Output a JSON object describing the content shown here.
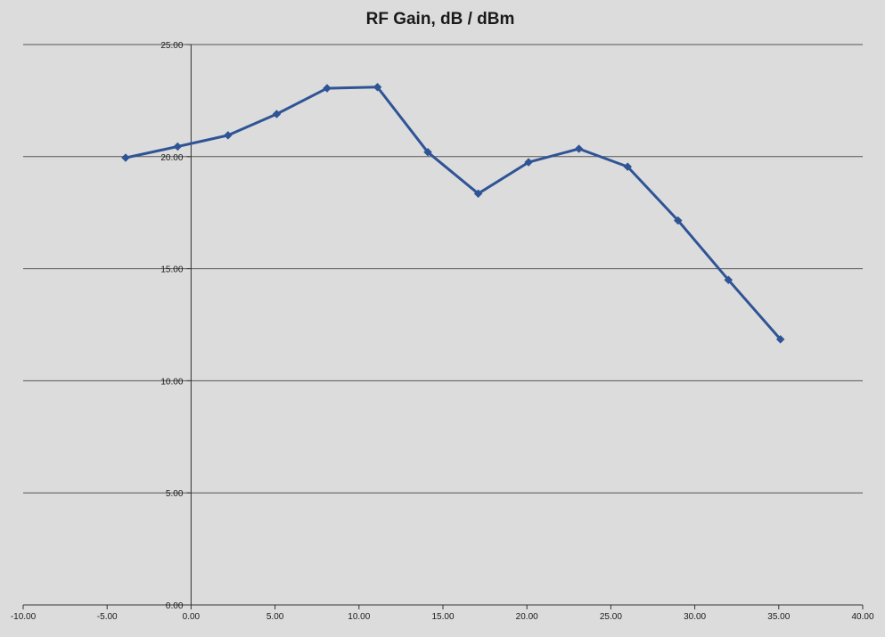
{
  "chart_data": {
    "type": "scatter",
    "title": "RF Gain, dB / dBm",
    "xlabel": "",
    "ylabel": "",
    "xlim": [
      -10,
      40
    ],
    "ylim": [
      0,
      25
    ],
    "x_ticks": [
      "-10.00",
      "-5.00",
      "0.00",
      "5.00",
      "10.00",
      "15.00",
      "20.00",
      "25.00",
      "30.00",
      "35.00",
      "40.00"
    ],
    "y_ticks": [
      "0.00",
      "5.00",
      "10.00",
      "15.00",
      "20.00",
      "25.00"
    ],
    "x_tick_values": [
      -10,
      -5,
      0,
      5,
      10,
      15,
      20,
      25,
      30,
      35,
      40
    ],
    "y_tick_values": [
      0,
      5,
      10,
      15,
      20,
      25
    ],
    "grid": "horizontal",
    "series": [
      {
        "color": "#2f5496",
        "marker": "diamond",
        "x": [
          -3.9,
          -0.8,
          2.2,
          5.1,
          8.1,
          11.1,
          14.1,
          17.1,
          20.1,
          23.1,
          26.0,
          29.0,
          32.0,
          35.1
        ],
        "y": [
          19.95,
          20.45,
          20.95,
          21.9,
          23.05,
          23.1,
          20.2,
          18.35,
          19.75,
          20.35,
          19.55,
          17.15,
          14.5,
          11.85
        ]
      }
    ]
  }
}
